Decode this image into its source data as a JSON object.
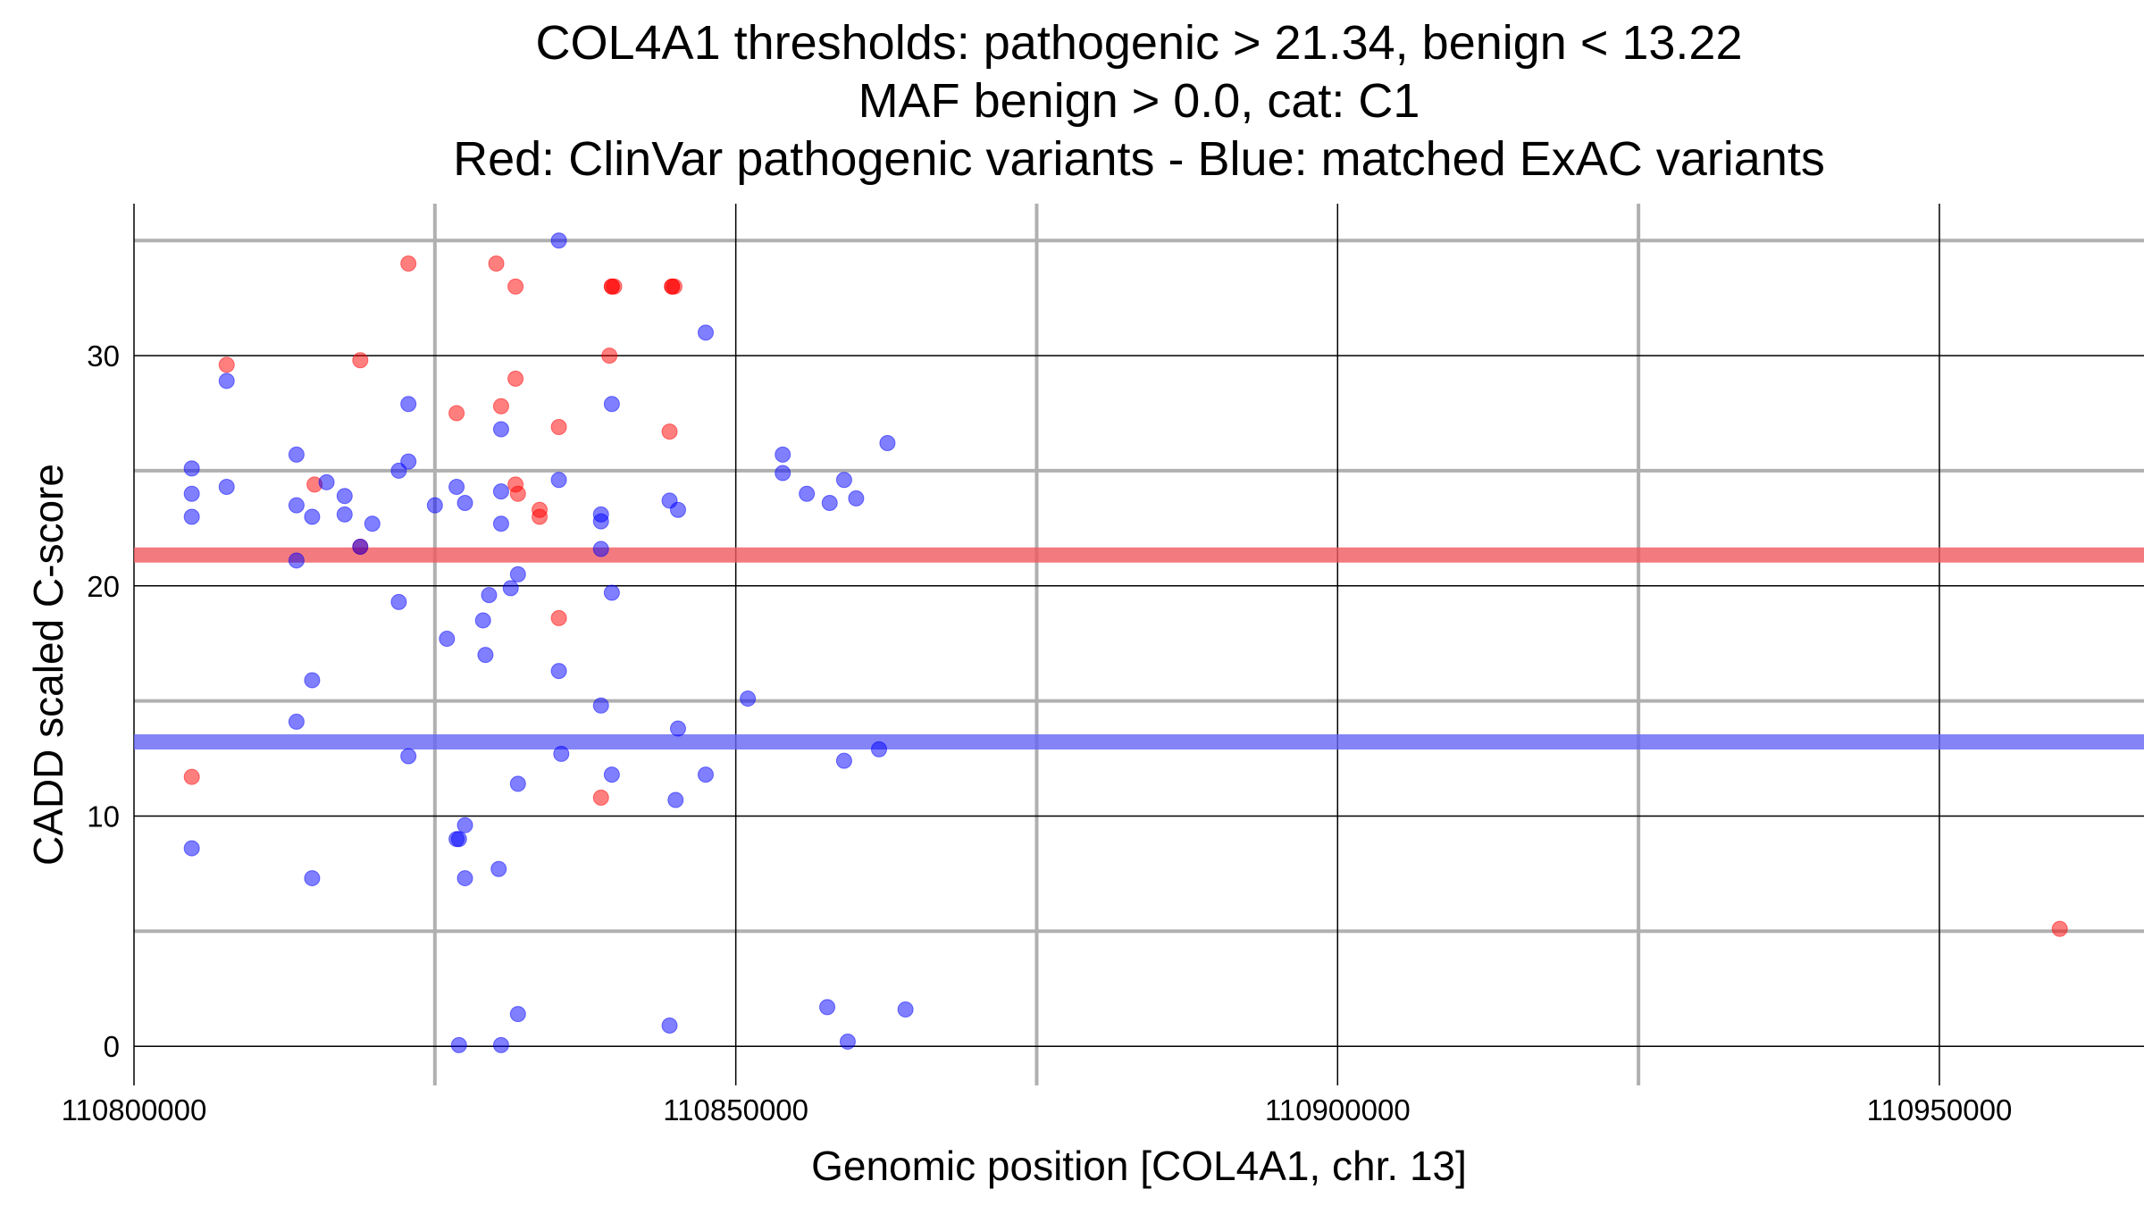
{
  "chart_data": {
    "type": "scatter",
    "title_lines": [
      "COL4A1 thresholds: pathogenic > 21.34, benign < 13.22",
      "MAF benign > 0.0, cat: C1",
      "Red: ClinVar pathogenic variants - Blue: matched ExAC variants"
    ],
    "xlabel": "Genomic position [COL4A1, chr. 13]",
    "ylabel": "CADD scaled C-score",
    "xlim": [
      110800000,
      110967000
    ],
    "ylim": [
      -1.7,
      36.6
    ],
    "x_ticks": [
      110800000,
      110850000,
      110900000,
      110950000
    ],
    "x_tick_labels": [
      "110800000",
      "110850000",
      "110900000",
      "110950000"
    ],
    "x_minor_ticks": [
      110825000,
      110875000,
      110925000
    ],
    "y_ticks": [
      0,
      10,
      20,
      30
    ],
    "y_tick_labels": [
      "0",
      "10",
      "20",
      "30"
    ],
    "y_minor_ticks": [
      5,
      15,
      25,
      35
    ],
    "grid": true,
    "thresholds": [
      {
        "name": "pathogenic threshold",
        "value": 21.34,
        "color": "#f05a5f"
      },
      {
        "name": "benign threshold",
        "value": 13.22,
        "color": "#6565f5"
      }
    ],
    "series": [
      {
        "name": "ClinVar pathogenic variants",
        "color": "#ff0000",
        "points": [
          [
            110804800,
            11.7
          ],
          [
            110807700,
            29.6
          ],
          [
            110815000,
            24.4
          ],
          [
            110818800,
            29.8
          ],
          [
            110818800,
            21.7
          ],
          [
            110822800,
            34.0
          ],
          [
            110826800,
            27.5
          ],
          [
            110830100,
            34.0
          ],
          [
            110830500,
            27.8
          ],
          [
            110831700,
            33.0
          ],
          [
            110831700,
            29.0
          ],
          [
            110831700,
            24.4
          ],
          [
            110831900,
            24.0
          ],
          [
            110833700,
            23.3
          ],
          [
            110833700,
            23.0
          ],
          [
            110835300,
            26.9
          ],
          [
            110835300,
            18.6
          ],
          [
            110838800,
            10.8
          ],
          [
            110839500,
            30.0
          ],
          [
            110839700,
            33.0
          ],
          [
            110839700,
            33.0
          ],
          [
            110839900,
            33.0
          ],
          [
            110844500,
            26.7
          ],
          [
            110844700,
            33.0
          ],
          [
            110844700,
            33.0
          ],
          [
            110844900,
            33.0
          ],
          [
            110960000,
            5.1
          ]
        ]
      },
      {
        "name": "matched ExAC variants",
        "color": "#0000ff",
        "points": [
          [
            110804800,
            25.1
          ],
          [
            110804800,
            24.0
          ],
          [
            110804800,
            23.0
          ],
          [
            110804800,
            8.6
          ],
          [
            110807700,
            28.9
          ],
          [
            110807700,
            24.3
          ],
          [
            110813500,
            25.7
          ],
          [
            110813500,
            23.5
          ],
          [
            110813500,
            21.1
          ],
          [
            110813500,
            14.1
          ],
          [
            110814800,
            23.0
          ],
          [
            110814800,
            15.9
          ],
          [
            110814800,
            7.3
          ],
          [
            110816000,
            24.5
          ],
          [
            110817500,
            23.9
          ],
          [
            110817500,
            23.1
          ],
          [
            110819800,
            22.7
          ],
          [
            110818800,
            21.7
          ],
          [
            110822000,
            25.0
          ],
          [
            110822800,
            27.9
          ],
          [
            110822800,
            25.4
          ],
          [
            110822000,
            19.3
          ],
          [
            110822800,
            12.6
          ],
          [
            110825000,
            23.5
          ],
          [
            110826800,
            24.3
          ],
          [
            110826000,
            17.7
          ],
          [
            110826800,
            9.0
          ],
          [
            110827000,
            9.0
          ],
          [
            110827500,
            9.6
          ],
          [
            110827500,
            7.3
          ],
          [
            110827000,
            0.05
          ],
          [
            110827500,
            23.6
          ],
          [
            110829000,
            18.5
          ],
          [
            110829200,
            17.0
          ],
          [
            110829500,
            19.6
          ],
          [
            110830500,
            26.8
          ],
          [
            110830500,
            24.1
          ],
          [
            110830500,
            22.7
          ],
          [
            110831300,
            19.9
          ],
          [
            110831900,
            20.5
          ],
          [
            110830300,
            7.7
          ],
          [
            110831900,
            11.4
          ],
          [
            110831900,
            1.4
          ],
          [
            110830500,
            0.05
          ],
          [
            110835300,
            35.0
          ],
          [
            110835300,
            24.6
          ],
          [
            110835300,
            16.3
          ],
          [
            110835500,
            12.7
          ],
          [
            110838800,
            23.1
          ],
          [
            110838800,
            22.8
          ],
          [
            110838800,
            21.6
          ],
          [
            110838800,
            14.8
          ],
          [
            110839700,
            27.9
          ],
          [
            110839700,
            19.7
          ],
          [
            110839700,
            11.8
          ],
          [
            110844500,
            23.7
          ],
          [
            110844500,
            0.9
          ],
          [
            110845200,
            23.3
          ],
          [
            110845200,
            13.8
          ],
          [
            110845000,
            10.7
          ],
          [
            110847500,
            31.0
          ],
          [
            110847500,
            11.8
          ],
          [
            110851000,
            15.1
          ],
          [
            110853900,
            25.7
          ],
          [
            110853900,
            24.9
          ],
          [
            110855900,
            24.0
          ],
          [
            110857800,
            23.6
          ],
          [
            110857600,
            1.7
          ],
          [
            110859000,
            24.6
          ],
          [
            110859000,
            12.4
          ],
          [
            110859300,
            0.2
          ],
          [
            110860000,
            23.8
          ],
          [
            110861900,
            12.9
          ],
          [
            110862600,
            26.2
          ],
          [
            110864100,
            1.6
          ]
        ]
      }
    ]
  }
}
